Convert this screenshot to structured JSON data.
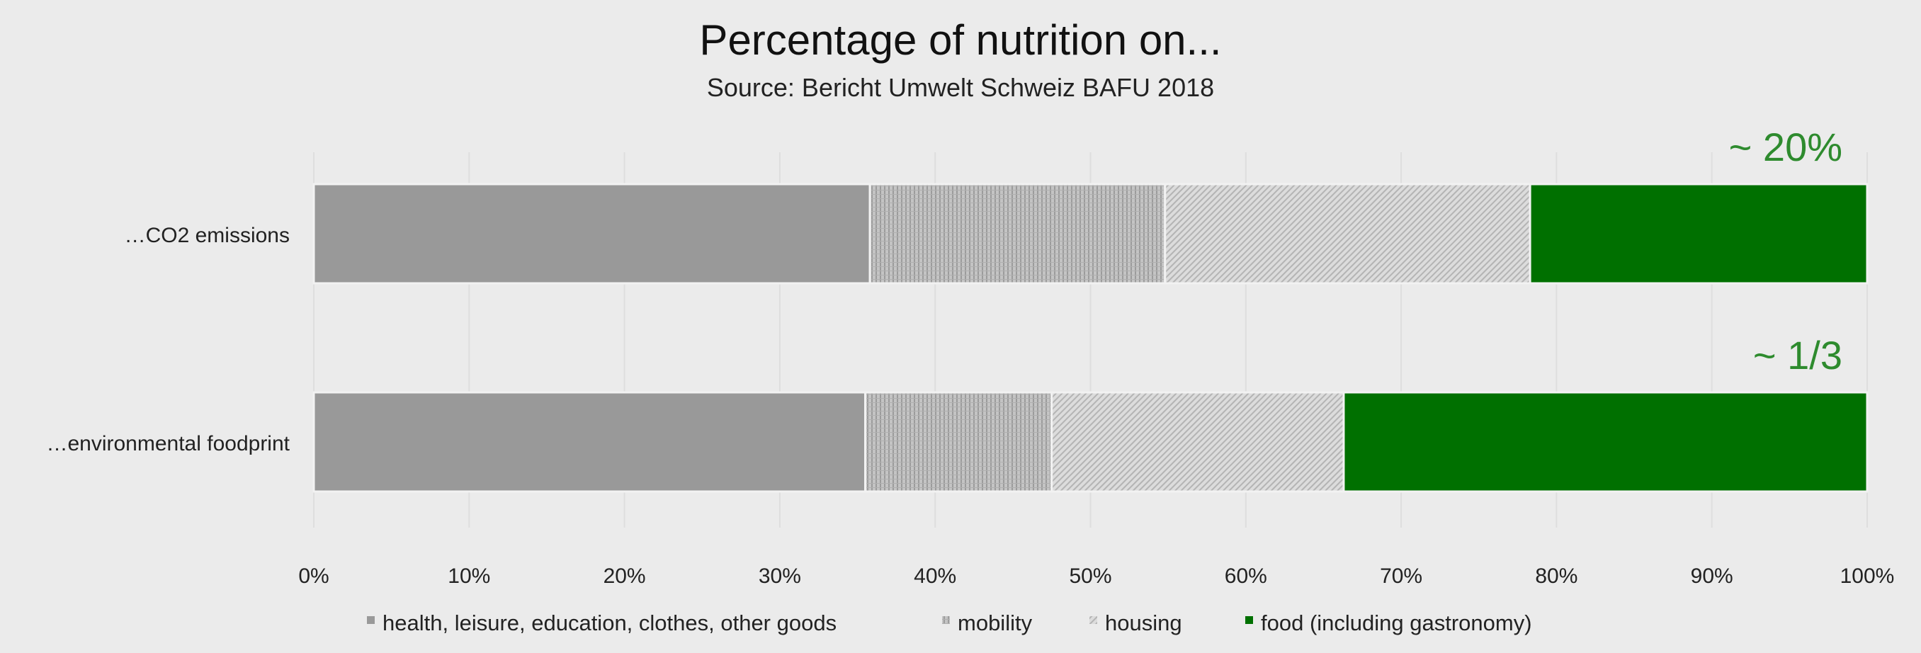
{
  "chart_data": {
    "type": "bar",
    "orientation": "horizontal",
    "stacked": "percent",
    "title": "Percentage of nutrition on...",
    "subtitle": "Source: Bericht Umwelt Schweiz BAFU 2018",
    "categories": [
      "…CO2 emissions",
      "…environmental  foodprint"
    ],
    "series": [
      {
        "name": "health, leisure, education, clothes, other goods",
        "values": [
          35.8,
          35.5
        ],
        "color": "#999999",
        "pattern": "solid"
      },
      {
        "name": "mobility",
        "values": [
          19.0,
          12.0
        ],
        "color": "#bdbdbd",
        "pattern": "vertical-stripes"
      },
      {
        "name": "housing",
        "values": [
          23.5,
          18.8
        ],
        "color": "#d9d9d9",
        "pattern": "diagonal-hatch"
      },
      {
        "name": "food (including gastronomy)",
        "values": [
          21.7,
          33.7
        ],
        "color": "#007000",
        "pattern": "solid"
      }
    ],
    "annotations": [
      {
        "category": "…CO2 emissions",
        "text": "~ 20%",
        "color": "#2e8b2e"
      },
      {
        "category": "…environmental  foodprint",
        "text": "~ 1/3",
        "color": "#2e8b2e"
      }
    ],
    "xaxis": {
      "min": 0,
      "max": 100,
      "ticks": [
        0,
        10,
        20,
        30,
        40,
        50,
        60,
        70,
        80,
        90,
        100
      ],
      "tick_labels": [
        "0%",
        "10%",
        "20%",
        "30%",
        "40%",
        "50%",
        "60%",
        "70%",
        "80%",
        "90%",
        "100%"
      ]
    },
    "grid": "vertical-light",
    "legend_position": "bottom"
  }
}
